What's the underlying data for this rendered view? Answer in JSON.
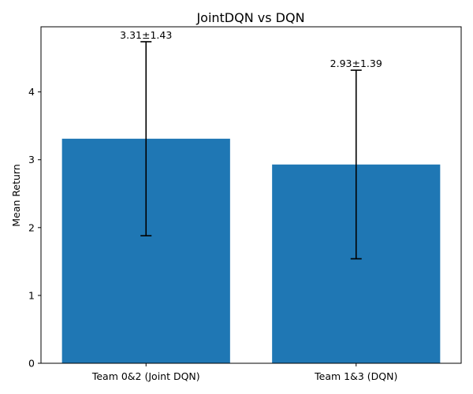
{
  "chart_data": {
    "type": "bar",
    "title": "JointDQN vs DQN",
    "xlabel": "",
    "ylabel": "Mean Return",
    "categories": [
      "Team 0&2 (Joint DQN)",
      "Team 1&3 (DQN)"
    ],
    "values": [
      3.31,
      2.93
    ],
    "errors": [
      1.43,
      1.39
    ],
    "data_labels": [
      "3.31±1.43",
      "2.93±1.39"
    ],
    "ylim": [
      0,
      4.96
    ],
    "yticks": [
      0,
      1,
      2,
      3,
      4
    ],
    "grid": false,
    "bar_color": "#1f77b4",
    "error_color": "#000000"
  }
}
